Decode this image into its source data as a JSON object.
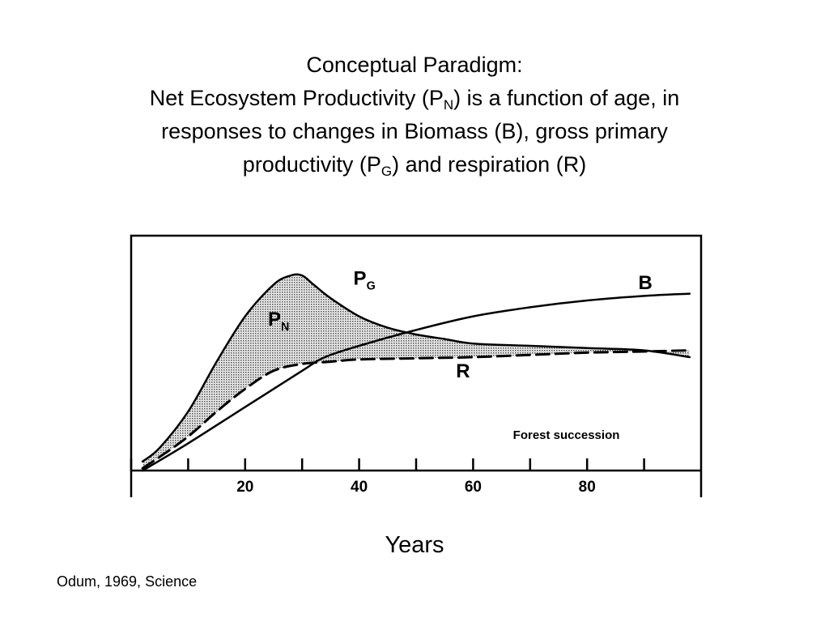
{
  "title": {
    "line1": "Conceptual Paradigm:",
    "line2_a": "Net Ecosystem Productivity (P",
    "line2_sub": "N",
    "line2_b": ") is a function of age, in",
    "line3": "responses to changes in Biomass (B), gross primary",
    "line4_a": "productivity (P",
    "line4_sub": "G",
    "line4_b": ") and respiration (R)"
  },
  "citation": "Odum, 1969, Science",
  "chart_data": {
    "type": "line",
    "xlabel": "Years",
    "xlim": [
      0,
      100
    ],
    "ylim": [
      0,
      100
    ],
    "xticks": [
      0,
      10,
      20,
      30,
      40,
      50,
      60,
      70,
      80,
      90
    ],
    "xtick_labels": [
      {
        "x": 20,
        "label": "20"
      },
      {
        "x": 40,
        "label": "40"
      },
      {
        "x": 60,
        "label": "60"
      },
      {
        "x": 80,
        "label": "80"
      }
    ],
    "annotation": "Forest succession",
    "series": [
      {
        "key": "PG",
        "name": "P",
        "sub": "G",
        "style": "solid",
        "label_at": [
          39,
          82
        ],
        "x": [
          2,
          5,
          10,
          15,
          20,
          25,
          28,
          30,
          32,
          35,
          40,
          45,
          50,
          55,
          60,
          70,
          80,
          90,
          98
        ],
        "y": [
          4,
          10,
          26,
          48,
          68,
          82,
          86,
          86,
          82,
          76,
          68,
          63,
          60,
          58,
          56,
          55,
          54,
          53,
          50
        ]
      },
      {
        "key": "R",
        "name": "R",
        "style": "dashed",
        "label_at": [
          57,
          41
        ],
        "x": [
          2,
          5,
          10,
          15,
          20,
          25,
          30,
          35,
          40,
          50,
          60,
          70,
          80,
          90,
          98
        ],
        "y": [
          1,
          6,
          15,
          26,
          36,
          44,
          47,
          48,
          49,
          49.5,
          50,
          51,
          52,
          52.5,
          53
        ]
      },
      {
        "key": "B",
        "name": "B",
        "style": "solid",
        "label_at": [
          89,
          80
        ],
        "x": [
          2,
          10,
          20,
          30,
          34,
          40,
          50,
          60,
          70,
          80,
          90,
          98
        ],
        "y": [
          0,
          12,
          28,
          44,
          50,
          55,
          62,
          68,
          72,
          75,
          77,
          78
        ]
      }
    ],
    "shaded_region": {
      "between": [
        "PG",
        "R"
      ],
      "name": "P",
      "sub": "N",
      "label_at": [
        24,
        64
      ]
    }
  }
}
